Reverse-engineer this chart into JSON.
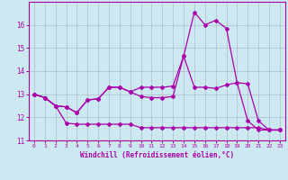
{
  "title": "",
  "xlabel": "Windchill (Refroidissement éolien,°C)",
  "ylabel": "",
  "bg_color": "#cce8f0",
  "line_color": "#aa00aa",
  "grid_color": "#b0b8cc",
  "xlim": [
    -0.5,
    23.5
  ],
  "ylim": [
    11,
    17
  ],
  "yticks": [
    11,
    12,
    13,
    14,
    15,
    16
  ],
  "xticks": [
    0,
    1,
    2,
    3,
    4,
    5,
    6,
    7,
    8,
    9,
    10,
    11,
    12,
    13,
    14,
    15,
    16,
    17,
    18,
    19,
    20,
    21,
    22,
    23
  ],
  "line1_x": [
    0,
    1,
    2,
    3,
    4,
    5,
    6,
    7,
    8,
    9,
    10,
    11,
    12,
    13,
    14,
    15,
    16,
    17,
    18,
    19,
    20,
    21,
    22,
    23
  ],
  "line1_y": [
    13.0,
    12.85,
    12.5,
    11.75,
    11.7,
    11.7,
    11.7,
    11.7,
    11.7,
    11.7,
    11.55,
    11.55,
    11.55,
    11.55,
    11.55,
    11.55,
    11.55,
    11.55,
    11.55,
    11.55,
    11.55,
    11.55,
    11.45,
    11.45
  ],
  "line2_x": [
    0,
    1,
    2,
    3,
    4,
    5,
    6,
    7,
    8,
    9,
    10,
    11,
    12,
    13,
    14,
    15,
    16,
    17,
    18,
    19,
    20,
    21,
    22,
    23
  ],
  "line2_y": [
    13.0,
    12.85,
    12.5,
    12.45,
    12.2,
    12.75,
    12.8,
    13.3,
    13.3,
    13.1,
    12.9,
    12.85,
    12.85,
    12.9,
    14.65,
    13.3,
    13.3,
    13.25,
    13.4,
    13.5,
    13.45,
    11.85,
    11.45,
    11.45
  ],
  "line3_x": [
    0,
    1,
    2,
    3,
    4,
    5,
    6,
    7,
    8,
    9,
    10,
    11,
    12,
    13,
    14,
    15,
    16,
    17,
    18,
    19,
    20,
    21,
    22,
    23
  ],
  "line3_y": [
    13.0,
    12.85,
    12.5,
    12.45,
    12.2,
    12.75,
    12.8,
    13.3,
    13.3,
    13.1,
    13.3,
    13.3,
    13.3,
    13.35,
    14.65,
    16.55,
    16.0,
    16.2,
    15.85,
    13.5,
    11.85,
    11.45,
    11.45,
    11.45
  ]
}
